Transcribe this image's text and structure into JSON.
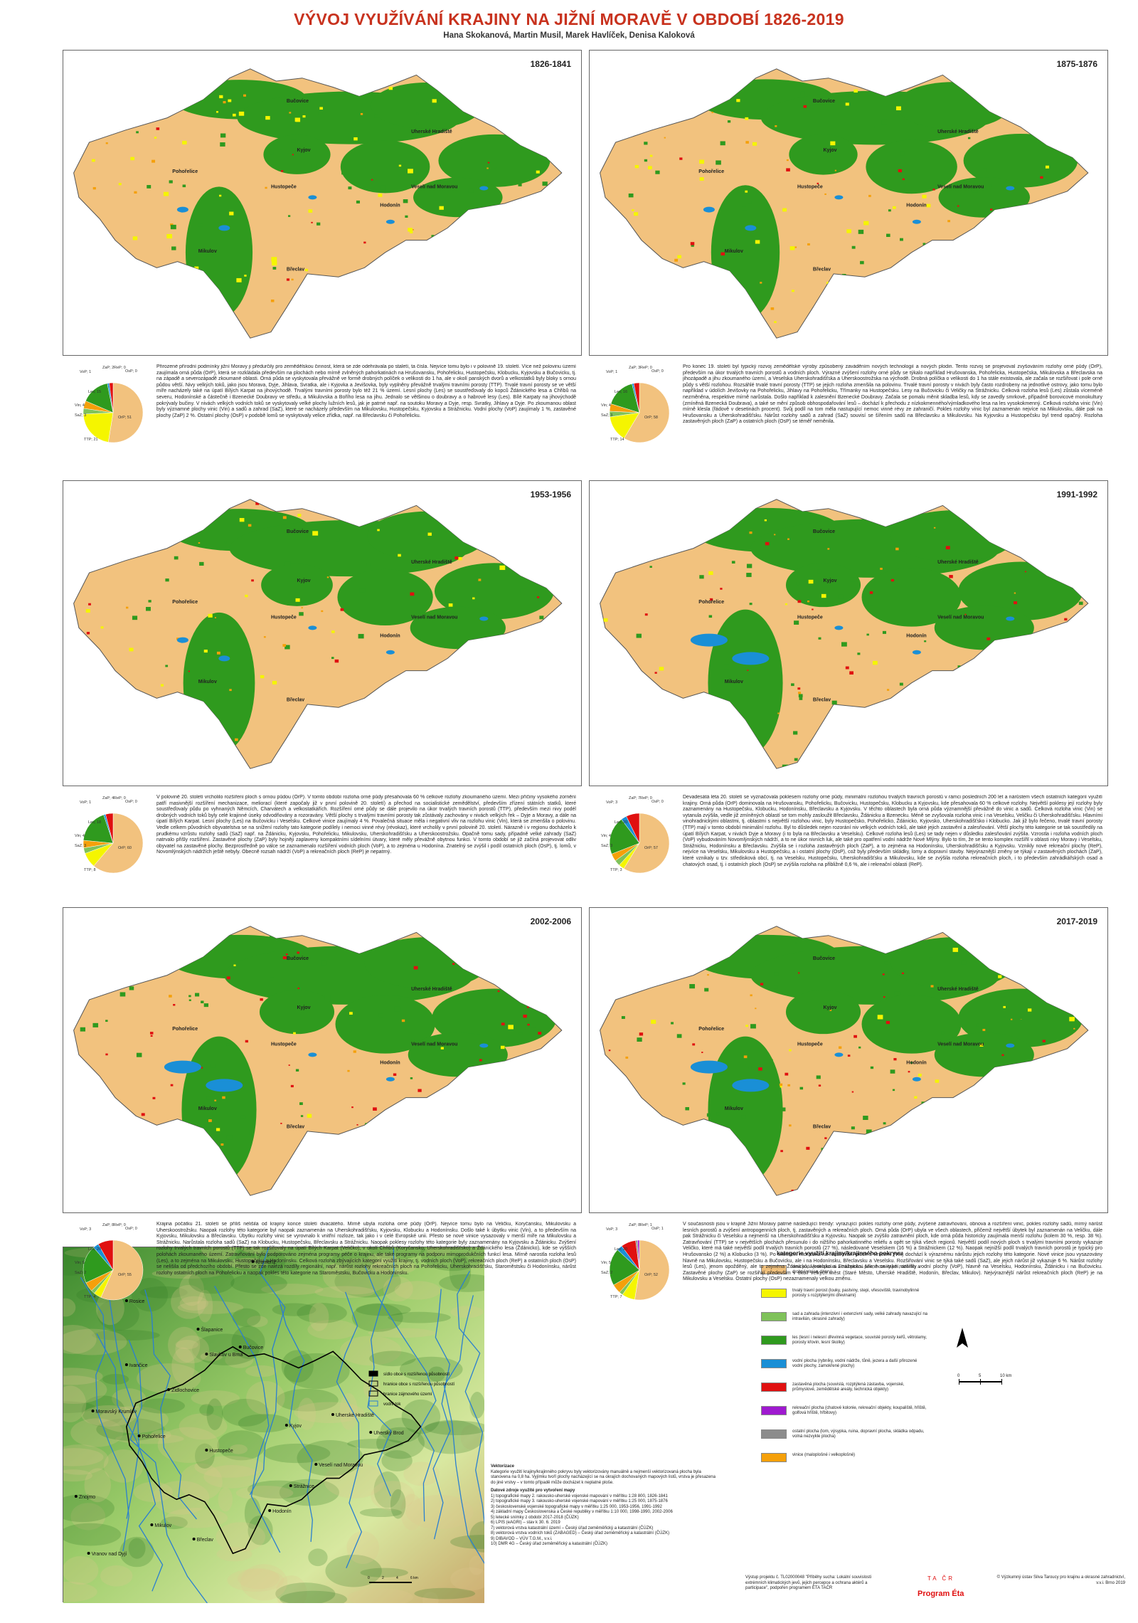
{
  "title": "VÝVOJ VYUŽÍVÁNÍ KRAJINY NA JIŽNÍ MORAVĚ V OBDOBÍ 1826-2019",
  "authors": "Hana Skokanová, Martin Musil, Marek Havlíček, Denisa Kaloková",
  "colors": {
    "orna": "#f2c27e",
    "ttp": "#f5f500",
    "sad": "#7fc25a",
    "les": "#2f9a1e",
    "voda": "#1a8fd6",
    "zast": "#e01010",
    "rek": "#9f1ad0",
    "ost": "#8c8c8c",
    "vin": "#f5a00a"
  },
  "map_labels": [
    "Bučovice",
    "Pohořelice",
    "Kyjov",
    "Hustopeče",
    "Uherské Hradiště",
    "Hodonín",
    "Veselí nad Moravou",
    "Mikulov",
    "Břeclav"
  ],
  "periods": [
    {
      "label": "1826-1841",
      "pie": [
        {
          "k": "OrP",
          "v": 51
        },
        {
          "k": "TTP",
          "v": 21
        },
        {
          "k": "SaZ",
          "v": 3
        },
        {
          "k": "Vin",
          "v": 4
        },
        {
          "k": "Les",
          "v": 15
        },
        {
          "k": "VoP",
          "v": 1
        },
        {
          "k": "ZaP",
          "v": 2
        },
        {
          "k": "OsP",
          "v": 0
        },
        {
          "k": "ReP",
          "v": 0
        }
      ],
      "text": "Přirozené přírodní podmínky jižní Moravy ji předurčily pro zemědělskou činnost, která se zde odehrávala po staletí, ta čísla. Nejvíce tomu bylo i v polovině 19. století. Více než polovinu území zaujímala orná půda (OrP), která se rozkládala především na plochách nebo mírně zvlněných pahorkatinách na Hrušovansku, Pohořelicku, Hustopečsku, Klobucku, Kyjovsku a Bučovicku, tj. na západě a severozápadě zkoumané oblasti. Orná půda se vyskytovala převážně ve formě drobných políček o velikosti do 1 ha, ale v okolí panských dvorů a velkostatků byly bloky s ornou půdou větší. Nivy velkých toků, jako jsou Morava, Dyje, Jihlava, Svratka, ale i Kyjovka a Jevišovka, byly vyplněny převážně trvalými travními porosty (TTP). Trvalé travní porosty se ve větší míře nacházely také na úpatí Bílých Karpat na jihovýchodě. Trvalými travními porosty bylo též 21 % území. Lesní plochy (Les) se soustřeďovaly do kopců Ždánického lesa a Chřibů na severu, Hodonínské a částečně i Bzenecké Doubravy ve středu, a Mikulovska a Bořího lesa na jihu. Jednalo se většinou o doubravy a o habrové lesy (Les). Bílé Karpaty na jihovýchodě pokrývaly bučiny. V nivách velkých vodních toků se vyskytovaly velké plochy lužních lesů, jak je patrné např. na soutoku Moravy a Dyje, resp. Svratky, Jihlavy a Dyje. Po zkoumanou oblast byly významné plochy vinic (Vin) a sadů a zahrad (SaZ), které se nacházely především na Mikulovsku, Hustopečsku, Kyjovsku a Strážnicku. Vodní plochy (VoP) zaujímaly 1 %, zastavěné plochy (ZaP) 2 %. Ostatní plochy (OsP) v podobě lomů se vyskytovaly velice zřídka, např. na Břeclavsku či Pohořelicku."
    },
    {
      "label": "1875-1876",
      "pie": [
        {
          "k": "OrP",
          "v": 58
        },
        {
          "k": "TTP",
          "v": 14
        },
        {
          "k": "SaZ",
          "v": 3
        },
        {
          "k": "Vin",
          "v": 4
        },
        {
          "k": "Les",
          "v": 16
        },
        {
          "k": "VoP",
          "v": 1
        },
        {
          "k": "ZaP",
          "v": 3
        },
        {
          "k": "OsP",
          "v": 0
        },
        {
          "k": "ReP",
          "v": 0
        }
      ],
      "text": "Pro konec 19. století byl typický rozvoj zemědělské výroby způsobený zaváděním nových technologií a nových plodin. Tento rozvoj se projevoval zvyšováním rozlohy orné půdy (OrP), především na úkor trvalých travních porostů a vodních ploch. Výrazné zvýšení rozlohy orné půdy se týkalo například Hrušovanska, Pohořelicka, Hustopečska, Mikulovska a Břeclavska na jihozápadě a jihu zkoumaného území, a Veselska Uherskohradišťska a Uherskoostrožska na východě. Drobná políčka o velikosti do 1 ha stále existovala, ale začala se rozšiřovat i pole orné půdy s větší rozlohou. Rozsáhlé trvalé travní porosty (TTP) se jejich rozloha zmenšila na polovinu. Trvalé travní porosty v nivách byly často rozdrobeny na jednotlivé ostrovy, jako tomu bylo například v údolích Jevišovky na Pohořelicku, Jihlavy na Pohořelicku, Třímanky na Hustopečsku. Lesy na Bučovicku či Veličky na Strážnicku. Celková rozloha lesů (Les) zůstala víceméně nezměněna, respektive mírně narůstala. Došlo například k zalesnění Bzenecké Doubravy. Začala se pomalu měnit skladba lesů, kdy se zavedly smrkové, případně borovicové monokultury (zmíněná Bzenecká Doubrava), a také se mění způsob obhospodařování lesů – dochází k přechodu z nízkokmenného/výmladkového lesa na les vysokokmenný. Celková rozloha vinic (Vin) mírně klesla (řádově v desetinách procent). Svůj podíl na tom měla nastupující nemoc vinné révy ze zahraničí. Pokles rozlohy vinic byl zaznamenán nejvíce na Mikulovsku, dále pak na Hrušovansku a Uherskohradišťsku. Nárůst rozlohy sadů a zahrad (SaZ) souvisí se šířením sadů na Břeclavsku a Mikulovsku. Na Kyjovsku a Hustopečsku byl trend opačný. Rozloha zastavěných ploch (ZaP) a ostatních ploch (OsP) se téměř neměnila."
    },
    {
      "label": "1953-1956",
      "pie": [
        {
          "k": "OrP",
          "v": 60
        },
        {
          "k": "TTP",
          "v": 8
        },
        {
          "k": "SaZ",
          "v": 3
        },
        {
          "k": "Vin",
          "v": 4
        },
        {
          "k": "Les",
          "v": 18
        },
        {
          "k": "VoP",
          "v": 1
        },
        {
          "k": "ZaP",
          "v": 4
        },
        {
          "k": "OsP",
          "v": 0
        },
        {
          "k": "ReP",
          "v": 0
        }
      ],
      "text": "V polovině 20. století vrcholilo rozšíření ploch s ornou půdou (OrP). V tomto období rozloha orné půdy přesahovala 60 % celkové rozlohy zkoumaného území. Mezi příčiny vysokého zornění patří masivnější rozšíření mechanizace, meliorací (které započaly již v první polovině 20. století) a přechod na socialistické zemědělství, především zřízení státních statků, které soustřeďovaly půdu po vyhnaných Němcích, Charvátech a velkostatkářích. Rozšíření orné půdy se dále projevilo na úkor trvalých travních porostů (TTP), především mezi nivy podél drobných vodních toků byly celé krajinné úseky odvodňovány a rozoravány. Větší plochy s trvalými travními porosty tak zůstávaly zachovány v nivách velkých řek – Dyje a Moravy, a dále na úpatí Bílých Karpat. Lesní plochy (Les) na Bučovicku i Veselsku. Celkové vinice zaujímaly 4 %. Povalečná situace měla i negativní vliv na rozlohu vinic (Vin), která se zmenšila o polovinu. Vedle celkem původních obyvatelstva se na snížení rozlohy tato kategorie podílely i nemoci vinné révy (révokaz), které vrcholily v první polovině 20. století. Nárazně i v regionu docházelo k prudkému vzrůstu rozlohy sadů (SaZ) např. na Ždánicku, Kyjovsku, Pohořelicku, Mikulovsku, Uherskohradišťsku a Uherskoostrožsku. Opačně tomu sady, případně velké zahrady (SaZ) natrvalo přišly rozšíření. Zastavěné plochy (ZaP) byly hojněji zaplaveny kompaktními sídelními útvary, které měly převážně obytnou funkci. V tomto období se již začíná projevovat odliv obyvatel na zastavěné plochy. Bezprostředně po válce se zaznamenalo rozšíření vodních ploch (VoP), a to zejména u Hodonína. Znatelný se zvýšil i podíl ostatních ploch (OsP), tj. lomů, v Novomlýnských nádržích ještě nebyly. Obecně rozsah nádrží (VoP) a rekreačních ploch (ReP) je nepatrný."
    },
    {
      "label": "1991-1992",
      "pie": [
        {
          "k": "OrP",
          "v": 57
        },
        {
          "k": "TTP",
          "v": 3
        },
        {
          "k": "SaZ",
          "v": 3
        },
        {
          "k": "Vin",
          "v": 4
        },
        {
          "k": "Les",
          "v": 20
        },
        {
          "k": "VoP",
          "v": 3
        },
        {
          "k": "ZaP",
          "v": 7
        },
        {
          "k": "OsP",
          "v": 0
        },
        {
          "k": "ReP",
          "v": 0
        }
      ],
      "text": "Devadesátá léta 20. století se vyznačovala poklesem rozlohy orné půdy, minimální rozlohou trvalých travních porostů v rámci posledních 200 let a nárůstem všech ostatních kategorií využití krajiny. Orná půda (OrP) dominovala na Hrušovansku, Pohořelicku, Bučovicku, Hustopečsku, Klobucku a Kyjovsku, kde přesahovala 60 % celkové rozlohy. Největší poklesy její rozlohy byly zaznamenány na Hustopečsku, Klobucku, Hodonínsku, Břeclavsku a Kyjovsku. V těchto oblastech byla orná půda významnější převážně do vinic a sadů. Celková rozloha vinic (Vin) se vytanula zvýšila, vedle již zmíněných oblastí se tom mohly zasloužit Břeclavsku, Ždánicku a Bzenecku. Méně se zvyšovala rozloha vinic i na Veselsku, Veličku či Uherskohradišťsku. Hlavními vinohradnickými oblastmi, tj. oblastmi s největší rozlohou vinic, byly Hustopečsko, Pohořelicko, Ždánicko, Kyjovsko, Uherskohradišťsko i Klobucko. Jak již bylo řečeno, trvalé travní porosty (TTP) mají v tomto období minimální rozlohu. Byl to důsledek nejen rozorání niv velkých vodních toků, ale také jejich zastavění a zalesňování. Větší plochy této kategorie se tak soustředily na úpatí Bílých Karpat, v nivách Dyje a Moravy (i to byla na Břeclavsku a Veselsku). Celkové rozloha lesů (Les) se tady nejen v důsledku zalesňování zvýšila. Vzrostla i rozloha vodních ploch (VoP) vybudováním Novomlýnských nádrží, a to ne úkor nivních luk, ale také pro opatření vodní nádrže Nové Mlýny. Bylo to tím, že se tento komplex rozšířil v oblasti nivy Moravy i Veselsku, Strážnicku, Hodonínsku a Břeclavsku. Zvýšila se i rozloha zastavěných ploch (ZaP), a to zejména na Hodonínsku, Uherskohradišťsku a Kyjovsku. Vznikly nové rekreační plochy (ReP), nejvíce na Veselsku, Mikulovsku a Hustopečsku, a i ostatní plochy (OsP), což byly především skládky, lomy a dopravní stavby. Nejvýraznější změny se týkají v zastavěných plochách (ZaP), které vznikaly u tzv. středisková obcí, tj. na Veselsku, Hustopečsku, Uherskohradišťsku a Mikulovsku, kde se zvýšila rozloha rekreačních ploch, i to především zahrádkářských osad a chatových osad, tj. i ostatních ploch (OsP) se zvýšila rozloha na přibližně 0,6 %, ale i rekreační oblasti (ReP)."
    },
    {
      "label": "2002-2006",
      "pie": [
        {
          "k": "OrP",
          "v": 55
        },
        {
          "k": "TTP",
          "v": 4
        },
        {
          "k": "SaZ",
          "v": 2
        },
        {
          "k": "Vin",
          "v": 5
        },
        {
          "k": "Les",
          "v": 20
        },
        {
          "k": "VoP",
          "v": 3
        },
        {
          "k": "ZaP",
          "v": 8
        },
        {
          "k": "OsP",
          "v": 0
        },
        {
          "k": "ReP",
          "v": 0
        }
      ],
      "text": "Krajina počátku 21. století se příliš nelišila od krajiny konce století dvacátého. Mírně ubyla rozloha orné půdy (OrP). Nejvíce tomu bylo na Veličku, Kory­čansku, Mikulovsku a Uherskoostrožsku. Naopak rozlohy této kategorie byl naopak zaznamenán na Uherskohradišťsku, Kyjovsku, Klobucku a Hodonínsku. Došlo také k úbytku vinic (Vin), a to především na Kyjovsku, Mikulovsku a Břeclavsku. Úbytku rozlohy vinic se vyrovnalo k vnitřní rozloze, tak jako i v celé Evropské unii. Přesto se nové vinice vysazovaly v menší míře na Mikulovsku a Strážnicku. Narůstala rozloha sadů (SaZ) na Klobucku, Hustopečsku, Břeclavsku a Strážnicku. Naopak poklesy rozlohy této kategorie byly zaznamenány na Kyjovsku a Ždánicku. Zvýšení rozlohy trvalých travních porostů (TTP) se tak rozšířovaly na úpatí Bílých Karpat (Veličko), v okolí Chřibů (Koryčansko, Uherskohradišťsko) a Ždánického lesa (Ždánicko), kde se výšších polohách zkoumaného území. Zatravňování bylo podporováno zejména programy péče o krajinu, ale také programy na podporu mimoprodukčních funkcí lesa. Mírně narostla rozloha lesů (Les), a to zejména na Mikulovsku, Hustopečsku a Hodonínsku. Celková rozloha zbývajících kategorií využití krajiny, tj. vodních ploch (VoP), rekreačních ploch (ReP) a ostatních ploch (OsP) se nelišila od předchozího období. Přesto se zde nalézá rozdíly regionální, např. nárůst rozlohy rekreačních ploch na Pohořelicku, Uherskohradišťsku, Staroměstsku či Hodonínsku, nárůst rozlohy ostatních ploch na Pohořelicku a naopak pokles této kategorie na Staroměstsku, Bučovicku a Hodonínsku."
    },
    {
      "label": "2017-2019",
      "pie": [
        {
          "k": "OrP",
          "v": 52
        },
        {
          "k": "TTP",
          "v": 7
        },
        {
          "k": "SaZ",
          "v": 2
        },
        {
          "k": "Vin",
          "v": 5
        },
        {
          "k": "Les",
          "v": 20
        },
        {
          "k": "VoP",
          "v": 3
        },
        {
          "k": "ZaP",
          "v": 8
        },
        {
          "k": "OsP",
          "v": 1
        },
        {
          "k": "ReP",
          "v": 1
        }
      ],
      "text": "V současnosti jsou v krajině Jižní Moravy patrné následující trendy: vyrazující pokles rozlohy orné půdy, zvýšené zatravňování, obnova a rozšíření vinic, pokles rozlohy sadů, mírný nárůst lesních porostů a zvýšení antropogenních ploch, tj. zastavěných a rekreačních ploch. Orná půda (OrP) ubyla ve všech oblastech, přičemž největší úbytek byl zaznamenán na Veličku, dále pak Strážnicku či Veselsku a nejmenší na Uherskohradišťsku a Kyjovsku. Naopak se zvýšilo zatravnění ploch, kde orná půda historicky zaujímala menší rozlohu (kolem 30 %, resp. 38 %). Zatravňování (TTP) se v největších plochách přesunulo i do nižšího pahorkatinného reliéfu a opět se týká všech regionů. Největší podíl nových ploch s trvalými travními porosty vykazuje Veličko, které má také největší podíl trvalých travních porostů (27 %), následované Veselskem (16 %) a Strážnickem (12 %). Naopak nejnižší podíl trvalých travních porostů je typický pro Hrušovansko (2 %) a Klobucko (3 %). Po ukončení moratoria na rozšiřování ploch s vinicemi (Vin) dochází k výraznému nárůstu jejich rozlohy této kategorie. Nové vinice jsou vysazovány hlavně na Mikulovsku, Hustopečsku a Bučovicku, ale i na Hodonínsku, Břeclavsku a Veselsku. Rozšiřování vinic se týká také sadů (SaZ), ale jejich nárůst již vykazuje 6 %. Nárůst rozlohy lesů (Les), jenom opožděný, ale to zejména Ždánicko, Veselsko a Strážnicko. Mírně se také rozšířily vodní plochy (VoP), hlavně na Veselsku, Hodonínsku, Ždánicku i na Bučovicku. Zastavěné plochy (ZaP) se rozšiřují především v okolí velkých měst (Staré Město, Uherské Hradiště, Hodonín, Břeclav, Mikulov). Nejvýraznější nárůst rekreačních ploch (ReP) je na Mikulovsku a Veselsku. Ostatní plochy (OsP) nezaznamenaly velkou změnu."
    }
  ],
  "relief": {
    "towns": [
      "Náměšť nad Oslavou",
      "Rosice",
      "Šlapanice",
      "Slavkov u Brna",
      "Bučovice",
      "Kroměříž",
      "Ivančice",
      "Židlochovice",
      "Kyjov",
      "Uherské Hradiště",
      "Pohořelice",
      "Hustopeče",
      "Veselí nad Moravou",
      "Uherský Brod",
      "Moravský Krumlov",
      "Znojmo",
      "Mikulov",
      "Břeclav",
      "Hodonín",
      "Strážnice",
      "Vranov nad Dyjí"
    ],
    "legend": [
      "sídlo obce s rozšířenou působností",
      "hranice obce s rozšířenou působností",
      "hranice zájmového území",
      "vodní tok"
    ],
    "scale": [
      "0",
      "2",
      "4",
      "6 km"
    ]
  },
  "legend": {
    "title": "kategorie využití krajiny/krajinného pokryvu",
    "items": [
      {
        "key": "orna",
        "label": "orná půda (velkoplošná a maloplošná pole, mozaiky polí, skleníky a drobné vinice, úhory)"
      },
      {
        "key": "ttp",
        "label": "trvalý travní porost (louky, pastviny, stepi, vřesoviště, travinobylinné porosty s rozptýlenými dřevinami)"
      },
      {
        "key": "sad",
        "label": "sad a zahrada (intenzivní i extenzivní sady, velké zahrady navazující na intravilán, okrasné zahrady)"
      },
      {
        "key": "les",
        "label": "les (lesní i nelesní dřevinná vegetace, souvislé porosty keřů, větrolamy, porosty křovin, lesní školky)"
      },
      {
        "key": "voda",
        "label": "vodní plocha (rybníky, vodní nádrže, tůně, jezera a další přirozené vodní plochy, zamokřené plochy)"
      },
      {
        "key": "zast",
        "label": "zastavěná plocha (souvislá, rozptýlená zástavba, vojenské, průmyslové, zemědělské areály, technická objekty)"
      },
      {
        "key": "rek",
        "label": "rekreační plocha (chatové kolonie, rekreační objekty, koupaliště, hřiště, golfová hřiště, hřbitovy)"
      },
      {
        "key": "ost",
        "label": "ostatní plocha (lom, výsypka, ruina, dopravní plocha, skládka odpadu, volná nezvykle plocha)"
      },
      {
        "key": "vin",
        "label": "vinice (maloplošné i velkoplošné)"
      }
    ],
    "scale": [
      "0",
      "5",
      "10 km"
    ]
  },
  "notes": {
    "heading": "Vektorizace",
    "body": "Kategorie využití krajiny/krajinného pokryvu byly vektorizovány manuálně a nejmenší vektorizovaná plocha byla stanovena na 0,8 ha. Vyjímku tvoří plochy nacházející se na okrajích dochovaných mapových listů, vrstva je přesazena do jiné vrstvy – v tomto případě může docházet k neplatné ploše.",
    "sources_heading": "Datové zdroje využité pro vytvoření mapy",
    "sources": [
      "1) topografické mapy 2. rakousko-uherské vojenské mapování v měřítku 1:28 800, 1826-1841",
      "2) topografické mapy 3. rakousko-uherské vojenské mapování v měřítku 1:25 000, 1875-1876",
      "3) československé vojenské topografické mapy v měřítku 1:25 000, 1953-1956, 1991-1992",
      "4) základní mapy Československa a České republiky v měřítku 1:10 000, 1998-1990, 2002-2006",
      "5) letecké snímky z období 2017-2018 (ČÚZK)",
      "6) LPIS (eAGRI) – stav k 30. 6. 2019",
      "7) vektorová vrstva katastrální území – Český úřad zeměměřický a katastrální (ČÚZK)",
      "8) vektorová vrstva vodních toků (ZABAGED) – Český úřad zeměměřický a katastrální (ČÚZK)",
      "9) DIBAVOD – VÚV T.G.M., v.v.i.",
      "10) DMR 4G – Český úřad zeměměřický a katastrální (ČÚZK)"
    ],
    "project": "Výstup projektu č. TL02000048 \"Příběhy sucha: Lokální souvislosti extrémních klimatických jevů, jejich percepce a ochrana aktérů a participace\", podpořen programem ÉTA TAČR",
    "institute": "© Výzkumný ústav Silva Taroucy pro krajinu a okrasné zahradnictví, v.v.i. Brno 2019",
    "tacr": "TA ČR",
    "program": "Program Éta"
  }
}
